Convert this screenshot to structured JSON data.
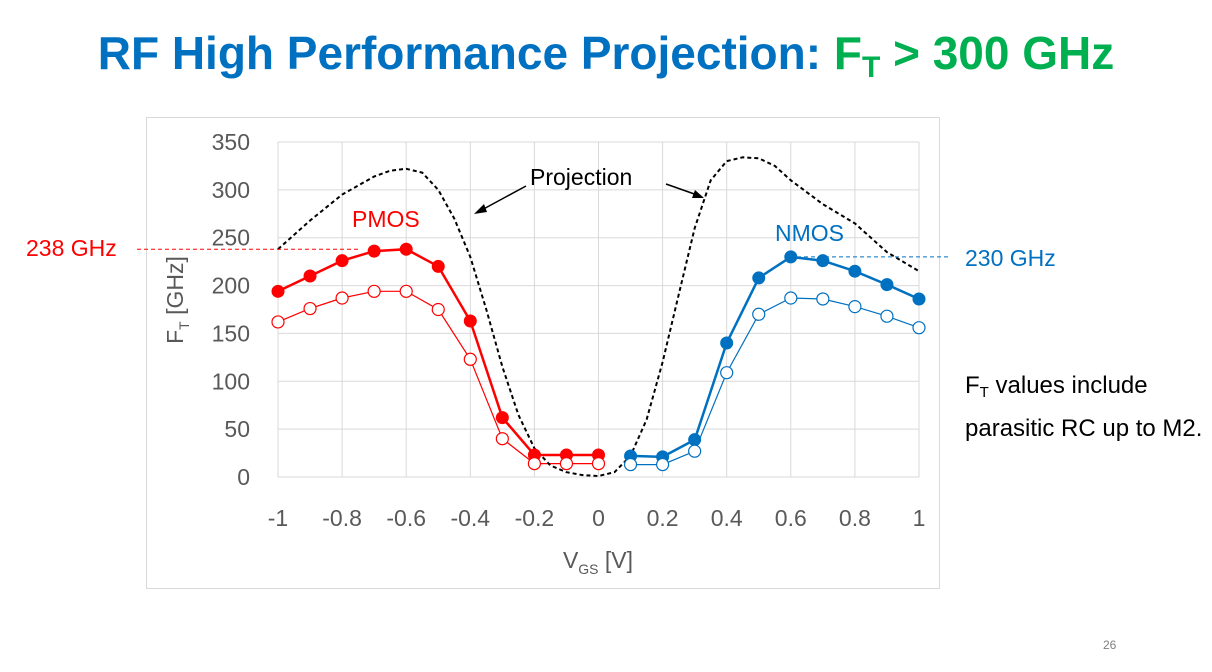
{
  "title": {
    "main": "RF High Performance Projection: ",
    "ft_letter": "F",
    "ft_sub": "T",
    "claim": " > 300 GHz"
  },
  "note": {
    "f": "F",
    "sub": "T",
    "text": " values include parasitic RC up to M2."
  },
  "slide_number": "26",
  "colors": {
    "title": "#0070c0",
    "accent_green": "#00b050",
    "pmos": "#ff0000",
    "nmos": "#0070c0",
    "projection": "#000000"
  },
  "chart_data": {
    "type": "line",
    "xlabel": "V",
    "xlabel_sub": "GS",
    "xlabel_unit": " [V]",
    "ylabel": "F",
    "ylabel_sub": "T",
    "ylabel_unit": " [GHz]",
    "xlim": [
      -1,
      1
    ],
    "ylim": [
      0,
      350
    ],
    "xticks": [
      -1,
      -0.8,
      -0.6,
      -0.4,
      -0.2,
      0,
      0.2,
      0.4,
      0.6,
      0.8,
      1
    ],
    "xtick_labels": [
      "-1",
      "-0.8",
      "-0.6",
      "-0.4",
      "-0.2",
      "0",
      "0.2",
      "0.4",
      "0.6",
      "0.8",
      "1"
    ],
    "yticks": [
      0,
      50,
      100,
      150,
      200,
      250,
      300,
      350
    ],
    "ytick_labels": [
      "0",
      "50",
      "100",
      "150",
      "200",
      "250",
      "300",
      "350"
    ],
    "grid": true,
    "series": [
      {
        "name": "PMOS",
        "style": "filled",
        "color": "#ff0000",
        "x": [
          -1,
          -0.9,
          -0.8,
          -0.7,
          -0.6,
          -0.5,
          -0.4,
          -0.3,
          -0.2,
          -0.1,
          0
        ],
        "y": [
          194,
          210,
          226,
          236,
          238,
          220,
          163,
          62,
          23,
          23,
          23
        ]
      },
      {
        "name": "",
        "style": "open",
        "color": "#ff0000",
        "x": [
          -1,
          -0.9,
          -0.8,
          -0.7,
          -0.6,
          -0.5,
          -0.4,
          -0.3,
          -0.2,
          -0.1,
          0
        ],
        "y": [
          162,
          176,
          187,
          194,
          194,
          175,
          123,
          40,
          14,
          14,
          14
        ]
      },
      {
        "name": "NMOS",
        "style": "filled",
        "color": "#0070c0",
        "x": [
          0.1,
          0.2,
          0.3,
          0.4,
          0.5,
          0.6,
          0.7,
          0.8,
          0.9,
          1
        ],
        "y": [
          22,
          21,
          39,
          140,
          208,
          230,
          226,
          215,
          201,
          186
        ]
      },
      {
        "name": "",
        "style": "open",
        "color": "#0070c0",
        "x": [
          0.1,
          0.2,
          0.3,
          0.4,
          0.5,
          0.6,
          0.7,
          0.8,
          0.9,
          1
        ],
        "y": [
          13,
          13,
          27,
          109,
          170,
          187,
          186,
          178,
          168,
          156
        ]
      },
      {
        "name": "Projection",
        "style": "dashed",
        "color": "#000000",
        "x": [
          -1,
          -0.9,
          -0.8,
          -0.7,
          -0.65,
          -0.6,
          -0.55,
          -0.5,
          -0.45,
          -0.4,
          -0.35,
          -0.3,
          -0.25,
          -0.2,
          -0.15,
          -0.1,
          -0.05,
          0,
          0.05,
          0.1,
          0.15,
          0.2,
          0.25,
          0.3,
          0.35,
          0.4,
          0.45,
          0.5,
          0.55,
          0.6,
          0.7,
          0.8,
          0.9,
          1
        ],
        "y": [
          238,
          268,
          295,
          314,
          320,
          322,
          318,
          300,
          270,
          230,
          175,
          115,
          65,
          30,
          12,
          5,
          2,
          1,
          5,
          22,
          60,
          120,
          190,
          260,
          310,
          330,
          334,
          333,
          325,
          310,
          285,
          265,
          235,
          215
        ]
      }
    ],
    "annotations": [
      {
        "text": "238 GHz",
        "value": 238,
        "color": "#ff0000"
      },
      {
        "text": "230 GHz",
        "value": 230,
        "color": "#0070c0"
      }
    ]
  }
}
